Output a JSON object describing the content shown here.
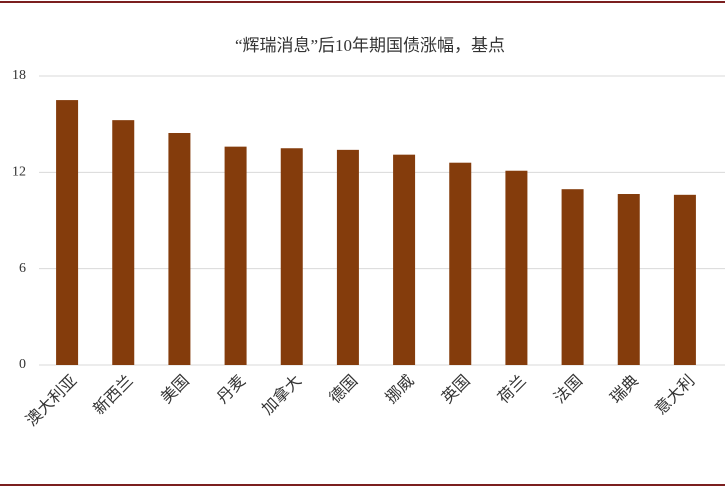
{
  "chart_data": {
    "type": "bar",
    "title": "“辉瑞消息”后10年期国债涨幅，基点",
    "categories": [
      "澳大利亚",
      "新西兰",
      "美国",
      "丹麦",
      "加拿大",
      "德国",
      "挪威",
      "英国",
      "荷兰",
      "法国",
      "瑞典",
      "意大利"
    ],
    "values": [
      16.5,
      15.25,
      14.45,
      13.6,
      13.5,
      13.4,
      13.1,
      12.6,
      12.1,
      10.95,
      10.65,
      10.6
    ],
    "color": "#843c0c",
    "ylim": [
      0,
      18
    ],
    "yticks": [
      0,
      6,
      12,
      18
    ],
    "grid": true
  }
}
